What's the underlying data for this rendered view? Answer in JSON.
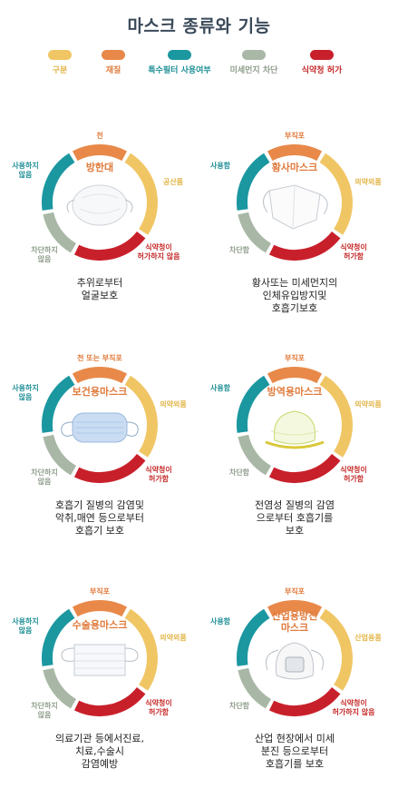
{
  "title": "마스크 종류와 기능",
  "legend": [
    {
      "label": "구분",
      "color": "#f0c665"
    },
    {
      "label": "재질",
      "color": "#e8894a"
    },
    {
      "label": "특수필터 사용여부",
      "color": "#1b97a0"
    },
    {
      "label": "미세먼지 차단",
      "color": "#a9b8a6"
    },
    {
      "label": "식약청 허가",
      "color": "#c8202b"
    }
  ],
  "masks": [
    {
      "name": [
        "방한대"
      ],
      "material": [
        "천"
      ],
      "gubun": [
        "공산품"
      ],
      "filter": [
        "사용하지",
        "않음"
      ],
      "dust": [
        "차단하지",
        "않음"
      ],
      "kfda": [
        "식약청이",
        "허가하지 않음"
      ],
      "desc": [
        "추위로부터",
        "얼굴보호"
      ],
      "icon": "winter-mask-icon"
    },
    {
      "name": [
        "황사마스크"
      ],
      "material": [
        "부직포"
      ],
      "gubun": [
        "의약외품"
      ],
      "filter": [
        "사용함"
      ],
      "dust": [
        "차단함"
      ],
      "kfda": [
        "식약청이",
        "허가함"
      ],
      "desc": [
        "황사또는 미세먼지의",
        "인체유입방지및",
        "호흡기보호"
      ],
      "icon": "kf-mask-icon"
    },
    {
      "name": [
        "보건용마스크"
      ],
      "material": [
        "천 또는 부직포"
      ],
      "gubun": [
        "의약외품"
      ],
      "filter": [
        "사용하지",
        "않음"
      ],
      "dust": [
        "차단하지",
        "않음"
      ],
      "kfda": [
        "식약청이",
        "허가함"
      ],
      "desc": [
        "호흡기 질병의 감염및",
        "악취,매연 등으로부터",
        "호흡기 보호"
      ],
      "icon": "health-mask-icon"
    },
    {
      "name": [
        "방역용마스크"
      ],
      "material": [
        "부직포"
      ],
      "gubun": [
        "의약외품"
      ],
      "filter": [
        "사용함"
      ],
      "dust": [
        "차단함"
      ],
      "kfda": [
        "식약청이",
        "허가함"
      ],
      "desc": [
        "전염성 질병의 감염",
        "으로부터 호흡기를",
        "보호"
      ],
      "icon": "quarantine-mask-icon"
    },
    {
      "name": [
        "수술용마스크"
      ],
      "material": [
        "부직포"
      ],
      "gubun": [
        "의약외품"
      ],
      "filter": [
        "사용하지",
        "않음"
      ],
      "dust": [
        "차단하지",
        "않음"
      ],
      "kfda": [
        "식약청이",
        "허가함"
      ],
      "desc": [
        "의료기관 등에서진료,",
        "치료,수술시",
        "감염예방"
      ],
      "icon": "surgical-mask-icon"
    },
    {
      "name": [
        "산업용방진",
        "마스크"
      ],
      "material": [
        "부직포"
      ],
      "gubun": [
        "산업용품"
      ],
      "filter": [
        "사용함"
      ],
      "dust": [
        "차단함"
      ],
      "kfda": [
        "식약청이",
        "허가하지 않음"
      ],
      "desc": [
        "산업 현장에서 미세",
        "분진 등으로부터",
        "호흡기를 보호"
      ],
      "icon": "industrial-respirator-icon"
    }
  ]
}
